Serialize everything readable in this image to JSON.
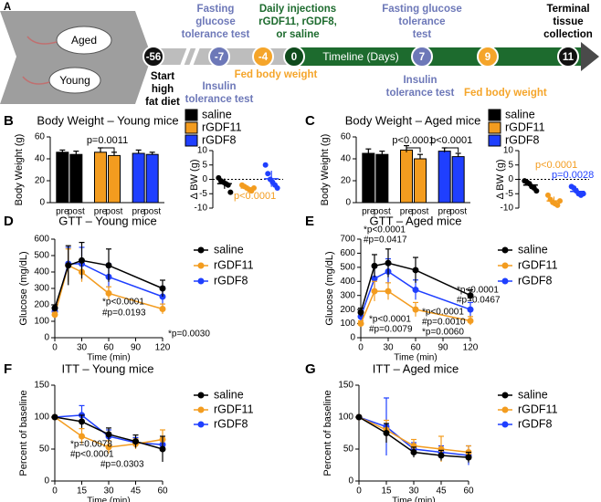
{
  "timeline": {
    "panel": "A",
    "mice": [
      "Aged",
      "Young"
    ],
    "days": [
      -56,
      -7,
      -4,
      0,
      7,
      9,
      11
    ],
    "axis_label": "Timeline (Days)",
    "start": [
      "Start",
      "high",
      "fat diet"
    ],
    "gtt_before": [
      "Fasting",
      "glucose",
      "tolerance test"
    ],
    "itt_before": [
      "Insulin",
      "tolerance test"
    ],
    "fed_before": "Fed body weight",
    "injections": [
      "Daily injections",
      "rGDF11, rGDF8,",
      "or saline"
    ],
    "gtt_after": [
      "Fasting glucose",
      "tolerance",
      "test"
    ],
    "itt_after": [
      "Insulin",
      "tolerance test"
    ],
    "fed_after": "Fed body weight",
    "terminal": [
      "Terminal",
      "tissue",
      "collection"
    ]
  },
  "chart_data": [
    {
      "type": "bar",
      "panel": "B",
      "title": "Body Weight – Young mice",
      "y_label": "Body Weight (g)",
      "categories": [
        "pre",
        "post"
      ],
      "series": [
        {
          "name": "saline",
          "color": "#000000",
          "values": [
            46,
            44
          ],
          "errors": [
            2,
            3
          ]
        },
        {
          "name": "rGDF11",
          "color": "#f39c1f",
          "values": [
            46,
            43
          ],
          "errors": [
            4,
            3
          ]
        },
        {
          "name": "rGDF8",
          "color": "#1f3fff",
          "values": [
            45,
            44
          ],
          "errors": [
            3,
            2
          ]
        }
      ],
      "ylim": [
        0,
        60
      ],
      "yticks": [
        0,
        20,
        40,
        60
      ],
      "annotations": [
        {
          "text": "p=0.0011"
        }
      ]
    },
    {
      "type": "dot",
      "y_label": "Δ BW (g)",
      "ylim": [
        -10,
        10
      ],
      "yticks": [
        -10,
        -5,
        0,
        5,
        10
      ],
      "zero_line": true,
      "groups": [
        {
          "color": "#000000",
          "mean": -1.5,
          "error": 1.8,
          "points": [
            0.5,
            -0.5,
            -1,
            -1.5,
            -2,
            -4.5
          ]
        },
        {
          "color": "#f39c1f",
          "mean": -3,
          "error": 0.8,
          "points": [
            -2,
            -2.5,
            -3,
            -3.5,
            -4,
            -3
          ]
        },
        {
          "color": "#1f3fff",
          "mean": 0.2,
          "error": 2.8,
          "points": [
            5,
            2,
            0,
            -1,
            -2,
            -3
          ]
        }
      ],
      "annotations": [
        {
          "text": "p<0.0001",
          "color": "#f39c1f"
        }
      ]
    },
    {
      "type": "bar",
      "panel": "C",
      "title": "Body Weight – Aged mice",
      "y_label": "Body Weight (g)",
      "categories": [
        "pre",
        "post"
      ],
      "series": [
        {
          "name": "saline",
          "color": "#000000",
          "values": [
            45,
            44
          ],
          "errors": [
            4,
            3
          ]
        },
        {
          "name": "rGDF11",
          "color": "#f39c1f",
          "values": [
            48,
            40
          ],
          "errors": [
            4,
            4
          ]
        },
        {
          "name": "rGDF8",
          "color": "#1f3fff",
          "values": [
            47,
            42
          ],
          "errors": [
            3,
            3
          ]
        }
      ],
      "ylim": [
        0,
        60
      ],
      "yticks": [
        0,
        20,
        40,
        60
      ],
      "annotations": [
        {
          "text": "p<0.0001"
        },
        {
          "text": "p<0.0001"
        }
      ]
    },
    {
      "type": "dot",
      "y_label": "Δ BW (g)",
      "ylim": [
        -10,
        10
      ],
      "yticks": [
        -10,
        -5,
        0,
        5,
        10
      ],
      "zero_line": true,
      "groups": [
        {
          "color": "#000000",
          "mean": -2,
          "error": 1.3,
          "points": [
            -0.5,
            -1,
            -1.5,
            -2.5,
            -3,
            -4
          ]
        },
        {
          "color": "#f39c1f",
          "mean": -7.5,
          "error": 1.5,
          "points": [
            -5.5,
            -7,
            -8,
            -8.5,
            -9,
            -7.5
          ]
        },
        {
          "color": "#1f3fff",
          "mean": -4.2,
          "error": 1.2,
          "points": [
            -2.5,
            -3,
            -4,
            -5,
            -5.5,
            -5
          ]
        }
      ],
      "annotations": [
        {
          "text": "p<0.0001",
          "color": "#f39c1f"
        },
        {
          "text": "p=0.0028",
          "color": "#1f3fff"
        }
      ]
    },
    {
      "type": "line",
      "panel": "D",
      "title": "GTT – Young mice",
      "x_label": "Time (min)",
      "y_label": "Glucose (mg/dL)",
      "x": [
        0,
        15,
        30,
        60,
        120
      ],
      "xlim": [
        0,
        120
      ],
      "xticks": [
        0,
        30,
        60,
        90,
        120
      ],
      "ylim": [
        0,
        600
      ],
      "yticks": [
        0,
        100,
        200,
        300,
        400,
        500,
        600
      ],
      "series": [
        {
          "name": "saline",
          "color": "#000000",
          "values": [
            180,
            440,
            470,
            440,
            300
          ],
          "errors": [
            20,
            120,
            110,
            100,
            50
          ]
        },
        {
          "name": "rGDF11",
          "color": "#f39c1f",
          "values": [
            140,
            440,
            400,
            270,
            175
          ],
          "errors": [
            15,
            100,
            60,
            40,
            30
          ]
        },
        {
          "name": "rGDF8",
          "color": "#1f3fff",
          "values": [
            160,
            450,
            450,
            370,
            250
          ],
          "errors": [
            20,
            100,
            100,
            80,
            60
          ]
        }
      ],
      "annotations": [
        {
          "text": "*p<0.0001"
        },
        {
          "text": "#p=0.0193"
        },
        {
          "text": "*p=0.0030"
        }
      ]
    },
    {
      "type": "line",
      "panel": "E",
      "title": "GTT – Aged mice",
      "x_label": "Time (min)",
      "y_label": "Glucose (mg/dL)",
      "x": [
        0,
        15,
        30,
        60,
        120
      ],
      "xlim": [
        0,
        120
      ],
      "xticks": [
        0,
        30,
        60,
        90,
        120
      ],
      "ylim": [
        0,
        700
      ],
      "yticks": [
        0,
        100,
        200,
        300,
        400,
        500,
        600,
        700
      ],
      "series": [
        {
          "name": "saline",
          "color": "#000000",
          "values": [
            180,
            510,
            530,
            480,
            300
          ],
          "errors": [
            30,
            80,
            100,
            90,
            40
          ]
        },
        {
          "name": "rGDF11",
          "color": "#f39c1f",
          "values": [
            100,
            330,
            330,
            200,
            120
          ],
          "errors": [
            20,
            70,
            60,
            50,
            30
          ]
        },
        {
          "name": "rGDF8",
          "color": "#1f3fff",
          "values": [
            150,
            420,
            470,
            340,
            200
          ],
          "errors": [
            30,
            80,
            90,
            70,
            50
          ]
        }
      ],
      "annotations": [
        {
          "text": "*p<0.0001"
        },
        {
          "text": "#p=0.0417"
        },
        {
          "text": "*p<0.0001"
        },
        {
          "text": "#p=0.0467"
        },
        {
          "text": "*p<0.0001"
        },
        {
          "text": "#p=0.0079"
        },
        {
          "text": "*p<0.0001"
        },
        {
          "text": "#p=0.0010"
        },
        {
          "text": "*p=0.0060"
        }
      ]
    },
    {
      "type": "line",
      "panel": "F",
      "title": "ITT – Young mice",
      "x_label": "Time (min)",
      "y_label": "Percent of baseline",
      "x": [
        0,
        15,
        30,
        45,
        60
      ],
      "xlim": [
        0,
        60
      ],
      "xticks": [
        0,
        15,
        30,
        45,
        60
      ],
      "ylim": [
        0,
        150
      ],
      "yticks": [
        0,
        50,
        100,
        150
      ],
      "series": [
        {
          "name": "saline",
          "color": "#000000",
          "values": [
            100,
            93,
            73,
            62,
            50
          ],
          "errors": [
            0,
            10,
            10,
            10,
            20
          ]
        },
        {
          "name": "rGDF11",
          "color": "#f39c1f",
          "values": [
            100,
            70,
            53,
            58,
            65
          ],
          "errors": [
            0,
            12,
            10,
            8,
            15
          ]
        },
        {
          "name": "rGDF8",
          "color": "#1f3fff",
          "values": [
            100,
            103,
            70,
            60,
            57
          ],
          "errors": [
            0,
            15,
            10,
            8,
            10
          ]
        }
      ],
      "annotations": [
        {
          "text": "*p=0.0078"
        },
        {
          "text": "#p<0.0001"
        },
        {
          "text": "#p=0.0303"
        }
      ]
    },
    {
      "type": "line",
      "panel": "G",
      "title": "ITT – Aged mice",
      "x_label": "Time (min)",
      "y_label": "Percent of baseline",
      "x": [
        0,
        15,
        30,
        45,
        60
      ],
      "xlim": [
        0,
        60
      ],
      "xticks": [
        0,
        15,
        30,
        45,
        60
      ],
      "ylim": [
        0,
        150
      ],
      "yticks": [
        0,
        50,
        100,
        150
      ],
      "series": [
        {
          "name": "saline",
          "color": "#000000",
          "values": [
            100,
            75,
            45,
            40,
            37
          ],
          "errors": [
            0,
            15,
            8,
            8,
            8
          ]
        },
        {
          "name": "rGDF11",
          "color": "#f39c1f",
          "values": [
            100,
            80,
            55,
            50,
            45
          ],
          "errors": [
            0,
            15,
            10,
            20,
            10
          ]
        },
        {
          "name": "rGDF8",
          "color": "#1f3fff",
          "values": [
            100,
            85,
            50,
            45,
            40
          ],
          "errors": [
            0,
            45,
            10,
            10,
            15
          ]
        }
      ],
      "annotations": []
    }
  ]
}
